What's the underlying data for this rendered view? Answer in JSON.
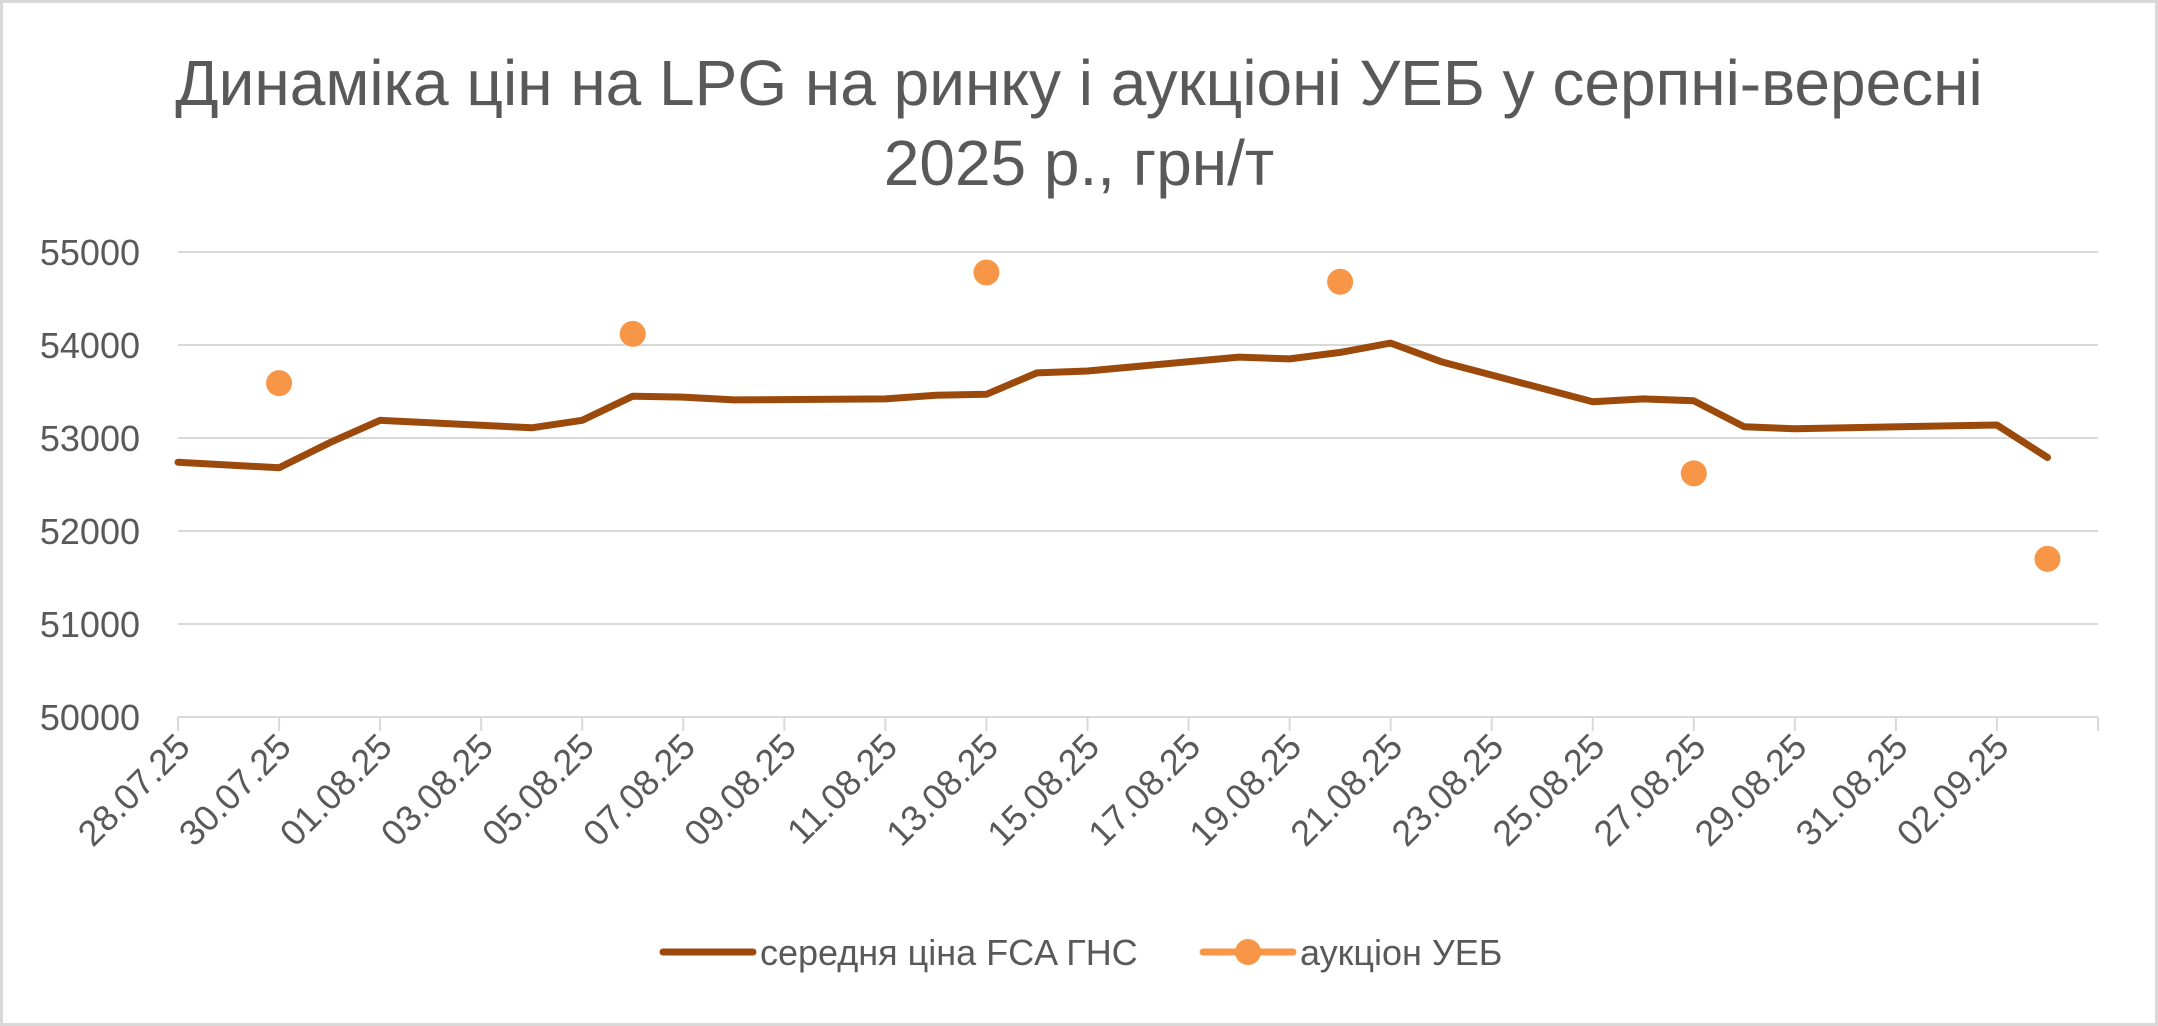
{
  "colors": {
    "background": "#ffffff",
    "border": "#d9d9d9",
    "gridline": "#d9d9d9",
    "text": "#595959",
    "line_series": "#9c4a0c",
    "marker_series": "#f79646"
  },
  "chart_data": {
    "type": "line",
    "title_lines": [
      "Динаміка цін на LPG на ринку і аукціоні УЕБ у серпні-вересні",
      "2025 р., грн/т"
    ],
    "xlabel": "",
    "ylabel": "",
    "x_axis": {
      "kind": "date",
      "start": "2025-07-28",
      "end": "2025-09-04",
      "tick_labels": [
        "28.07.25",
        "30.07.25",
        "01.08.25",
        "03.08.25",
        "05.08.25",
        "07.08.25",
        "09.08.25",
        "11.08.25",
        "13.08.25",
        "15.08.25",
        "17.08.25",
        "19.08.25",
        "21.08.25",
        "23.08.25",
        "25.08.25",
        "27.08.25",
        "29.08.25",
        "31.08.25",
        "02.09.25"
      ],
      "tick_dates": [
        "2025-07-28",
        "2025-07-30",
        "2025-08-01",
        "2025-08-03",
        "2025-08-05",
        "2025-08-07",
        "2025-08-09",
        "2025-08-11",
        "2025-08-13",
        "2025-08-15",
        "2025-08-17",
        "2025-08-19",
        "2025-08-21",
        "2025-08-23",
        "2025-08-25",
        "2025-08-27",
        "2025-08-29",
        "2025-08-31",
        "2025-09-02"
      ]
    },
    "y_axis": {
      "min": 50000,
      "max": 55000,
      "tick_labels": [
        "50000",
        "51000",
        "52000",
        "53000",
        "54000",
        "55000"
      ],
      "ticks": [
        50000,
        51000,
        52000,
        53000,
        54000,
        55000
      ]
    },
    "grid": true,
    "legend_position": "bottom",
    "series": [
      {
        "name": "середня ціна FCA ГНС",
        "style": "line",
        "color": "#9c4a0c",
        "points": [
          {
            "x": "2025-07-28",
            "y": 52740
          },
          {
            "x": "2025-07-30",
            "y": 52680
          },
          {
            "x": "2025-07-31",
            "y": 52950
          },
          {
            "x": "2025-08-01",
            "y": 53190
          },
          {
            "x": "2025-08-04",
            "y": 53110
          },
          {
            "x": "2025-08-05",
            "y": 53190
          },
          {
            "x": "2025-08-06",
            "y": 53450
          },
          {
            "x": "2025-08-07",
            "y": 53440
          },
          {
            "x": "2025-08-08",
            "y": 53410
          },
          {
            "x": "2025-08-11",
            "y": 53420
          },
          {
            "x": "2025-08-12",
            "y": 53460
          },
          {
            "x": "2025-08-13",
            "y": 53470
          },
          {
            "x": "2025-08-14",
            "y": 53700
          },
          {
            "x": "2025-08-15",
            "y": 53720
          },
          {
            "x": "2025-08-18",
            "y": 53870
          },
          {
            "x": "2025-08-19",
            "y": 53850
          },
          {
            "x": "2025-08-20",
            "y": 53920
          },
          {
            "x": "2025-08-21",
            "y": 54020
          },
          {
            "x": "2025-08-22",
            "y": 53820
          },
          {
            "x": "2025-08-25",
            "y": 53390
          },
          {
            "x": "2025-08-26",
            "y": 53420
          },
          {
            "x": "2025-08-27",
            "y": 53400
          },
          {
            "x": "2025-08-28",
            "y": 53120
          },
          {
            "x": "2025-08-29",
            "y": 53100
          },
          {
            "x": "2025-09-02",
            "y": 53140
          },
          {
            "x": "2025-09-03",
            "y": 52790
          }
        ]
      },
      {
        "name": "аукціон УЕБ",
        "style": "markers",
        "color": "#f79646",
        "points": [
          {
            "x": "2025-07-30",
            "y": 53590
          },
          {
            "x": "2025-08-06",
            "y": 54120
          },
          {
            "x": "2025-08-13",
            "y": 54780
          },
          {
            "x": "2025-08-20",
            "y": 54680
          },
          {
            "x": "2025-08-27",
            "y": 52620
          },
          {
            "x": "2025-09-03",
            "y": 51700
          }
        ]
      }
    ]
  }
}
